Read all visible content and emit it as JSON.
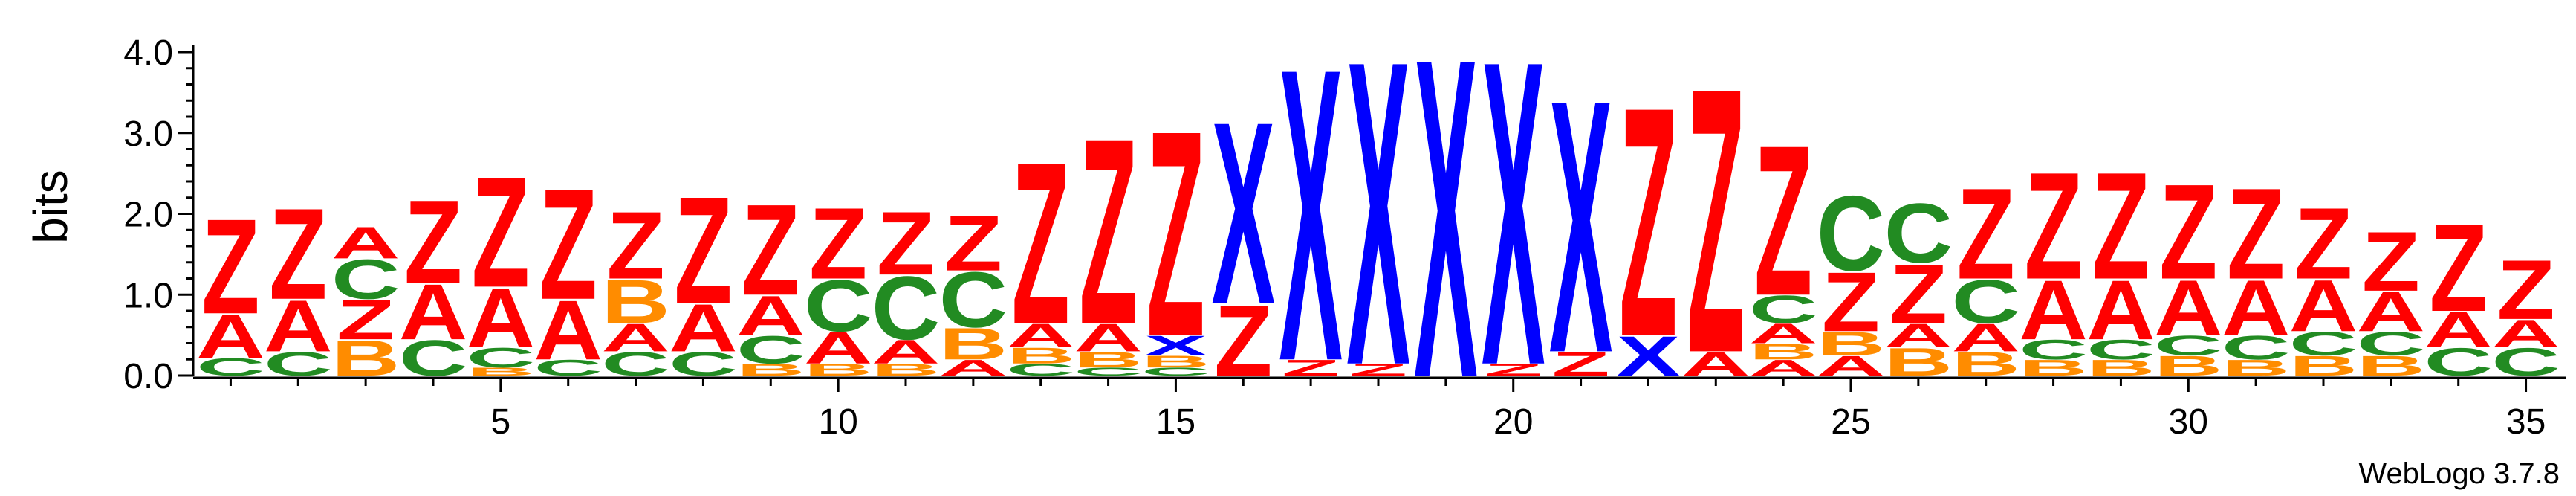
{
  "chart_data": {
    "type": "sequence-logo",
    "ylabel": "bits",
    "ylim": [
      0,
      4.1
    ],
    "y_ticks": [
      "0.0",
      "1.0",
      "2.0",
      "3.0",
      "4.0"
    ],
    "y_tick_values": [
      0,
      1,
      2,
      3,
      4
    ],
    "x_ticks": [
      "5",
      "10",
      "15",
      "20",
      "25",
      "30",
      "35"
    ],
    "x_tick_values": [
      5,
      10,
      15,
      20,
      25,
      30,
      35
    ],
    "positions": 35,
    "colors": {
      "Z": "#ff0000",
      "A": "#ff0000",
      "X": "#0000ff",
      "C": "#228b22",
      "B": "#ff8c00"
    },
    "stacks": [
      {
        "pos": 1,
        "letters": [
          [
            "C",
            0.22
          ],
          [
            "A",
            0.55
          ],
          [
            "Z",
            1.2
          ]
        ]
      },
      {
        "pos": 2,
        "letters": [
          [
            "C",
            0.3
          ],
          [
            "A",
            0.65
          ],
          [
            "Z",
            1.15
          ]
        ]
      },
      {
        "pos": 3,
        "letters": [
          [
            "B",
            0.45
          ],
          [
            "Z",
            0.5
          ],
          [
            "C",
            0.5
          ],
          [
            "A",
            0.4
          ]
        ]
      },
      {
        "pos": 4,
        "letters": [
          [
            "C",
            0.45
          ],
          [
            "A",
            0.7
          ],
          [
            "Z",
            1.05
          ]
        ]
      },
      {
        "pos": 5,
        "letters": [
          [
            "B",
            0.1
          ],
          [
            "C",
            0.25
          ],
          [
            "A",
            0.75
          ],
          [
            "Z",
            1.4
          ]
        ]
      },
      {
        "pos": 6,
        "letters": [
          [
            "C",
            0.2
          ],
          [
            "A",
            0.75
          ],
          [
            "Z",
            1.4
          ]
        ]
      },
      {
        "pos": 7,
        "letters": [
          [
            "C",
            0.3
          ],
          [
            "A",
            0.35
          ],
          [
            "B",
            0.55
          ],
          [
            "Z",
            0.85
          ]
        ]
      },
      {
        "pos": 8,
        "letters": [
          [
            "C",
            0.3
          ],
          [
            "A",
            0.6
          ],
          [
            "Z",
            1.35
          ]
        ]
      },
      {
        "pos": 9,
        "letters": [
          [
            "B",
            0.15
          ],
          [
            "C",
            0.35
          ],
          [
            "A",
            0.5
          ],
          [
            "Z",
            1.15
          ]
        ]
      },
      {
        "pos": 10,
        "letters": [
          [
            "B",
            0.15
          ],
          [
            "A",
            0.4
          ],
          [
            "C",
            0.65
          ],
          [
            "Z",
            0.9
          ]
        ]
      },
      {
        "pos": 11,
        "letters": [
          [
            "B",
            0.15
          ],
          [
            "A",
            0.3
          ],
          [
            "C",
            0.8
          ],
          [
            "Z",
            0.8
          ]
        ]
      },
      {
        "pos": 12,
        "letters": [
          [
            "A",
            0.2
          ],
          [
            "B",
            0.4
          ],
          [
            "C",
            0.7
          ],
          [
            "Z",
            0.7
          ]
        ]
      },
      {
        "pos": 13,
        "letters": [
          [
            "C",
            0.15
          ],
          [
            "B",
            0.2
          ],
          [
            "A",
            0.3
          ],
          [
            "Z",
            2.05
          ]
        ]
      },
      {
        "pos": 14,
        "letters": [
          [
            "C",
            0.1
          ],
          [
            "B",
            0.2
          ],
          [
            "A",
            0.35
          ],
          [
            "Z",
            2.35
          ]
        ]
      },
      {
        "pos": 15,
        "letters": [
          [
            "C",
            0.1
          ],
          [
            "B",
            0.15
          ],
          [
            "X",
            0.25
          ],
          [
            "Z",
            2.6
          ]
        ]
      },
      {
        "pos": 16,
        "letters": [
          [
            "Z",
            0.9
          ],
          [
            "X",
            2.3
          ]
        ]
      },
      {
        "pos": 17,
        "letters": [
          [
            "Z",
            0.2
          ],
          [
            "X",
            3.7
          ]
        ]
      },
      {
        "pos": 18,
        "letters": [
          [
            "Z",
            0.15
          ],
          [
            "X",
            3.85
          ]
        ]
      },
      {
        "pos": 19,
        "letters": [
          [
            "X",
            4.03
          ]
        ]
      },
      {
        "pos": 20,
        "letters": [
          [
            "Z",
            0.15
          ],
          [
            "X",
            3.85
          ]
        ]
      },
      {
        "pos": 21,
        "letters": [
          [
            "Z",
            0.3
          ],
          [
            "X",
            3.2
          ]
        ]
      },
      {
        "pos": 22,
        "letters": [
          [
            "X",
            0.5
          ],
          [
            "Z",
            2.9
          ]
        ]
      },
      {
        "pos": 23,
        "letters": [
          [
            "A",
            0.3
          ],
          [
            "Z",
            3.35
          ]
        ]
      },
      {
        "pos": 24,
        "letters": [
          [
            "A",
            0.2
          ],
          [
            "B",
            0.2
          ],
          [
            "A",
            0.25
          ],
          [
            "C",
            0.35
          ],
          [
            "Z",
            1.9
          ]
        ]
      },
      {
        "pos": 25,
        "letters": [
          [
            "A",
            0.25
          ],
          [
            "B",
            0.3
          ],
          [
            "Z",
            0.75
          ],
          [
            "C",
            0.95
          ]
        ]
      },
      {
        "pos": 26,
        "letters": [
          [
            "B",
            0.35
          ],
          [
            "A",
            0.3
          ],
          [
            "Z",
            0.75
          ],
          [
            "C",
            0.75
          ]
        ]
      },
      {
        "pos": 27,
        "letters": [
          [
            "B",
            0.3
          ],
          [
            "A",
            0.35
          ],
          [
            "C",
            0.55
          ],
          [
            "Z",
            1.15
          ]
        ]
      },
      {
        "pos": 28,
        "letters": [
          [
            "B",
            0.2
          ],
          [
            "C",
            0.25
          ],
          [
            "A",
            0.75
          ],
          [
            "Z",
            1.35
          ]
        ]
      },
      {
        "pos": 29,
        "letters": [
          [
            "B",
            0.2
          ],
          [
            "C",
            0.25
          ],
          [
            "A",
            0.75
          ],
          [
            "Z",
            1.35
          ]
        ]
      },
      {
        "pos": 30,
        "letters": [
          [
            "B",
            0.25
          ],
          [
            "C",
            0.25
          ],
          [
            "A",
            0.7
          ],
          [
            "Z",
            1.2
          ]
        ]
      },
      {
        "pos": 31,
        "letters": [
          [
            "B",
            0.2
          ],
          [
            "C",
            0.3
          ],
          [
            "A",
            0.7
          ],
          [
            "Z",
            1.15
          ]
        ]
      },
      {
        "pos": 32,
        "letters": [
          [
            "B",
            0.25
          ],
          [
            "C",
            0.3
          ],
          [
            "A",
            0.65
          ],
          [
            "Z",
            0.9
          ]
        ]
      },
      {
        "pos": 33,
        "letters": [
          [
            "B",
            0.25
          ],
          [
            "C",
            0.3
          ],
          [
            "A",
            0.5
          ],
          [
            "Z",
            0.75
          ]
        ]
      },
      {
        "pos": 34,
        "letters": [
          [
            "C",
            0.35
          ],
          [
            "A",
            0.45
          ],
          [
            "Z",
            1.1
          ]
        ]
      },
      {
        "pos": 35,
        "letters": [
          [
            "C",
            0.35
          ],
          [
            "A",
            0.35
          ],
          [
            "Z",
            0.75
          ]
        ]
      }
    ]
  },
  "footer": "WebLogo 3.7.8"
}
